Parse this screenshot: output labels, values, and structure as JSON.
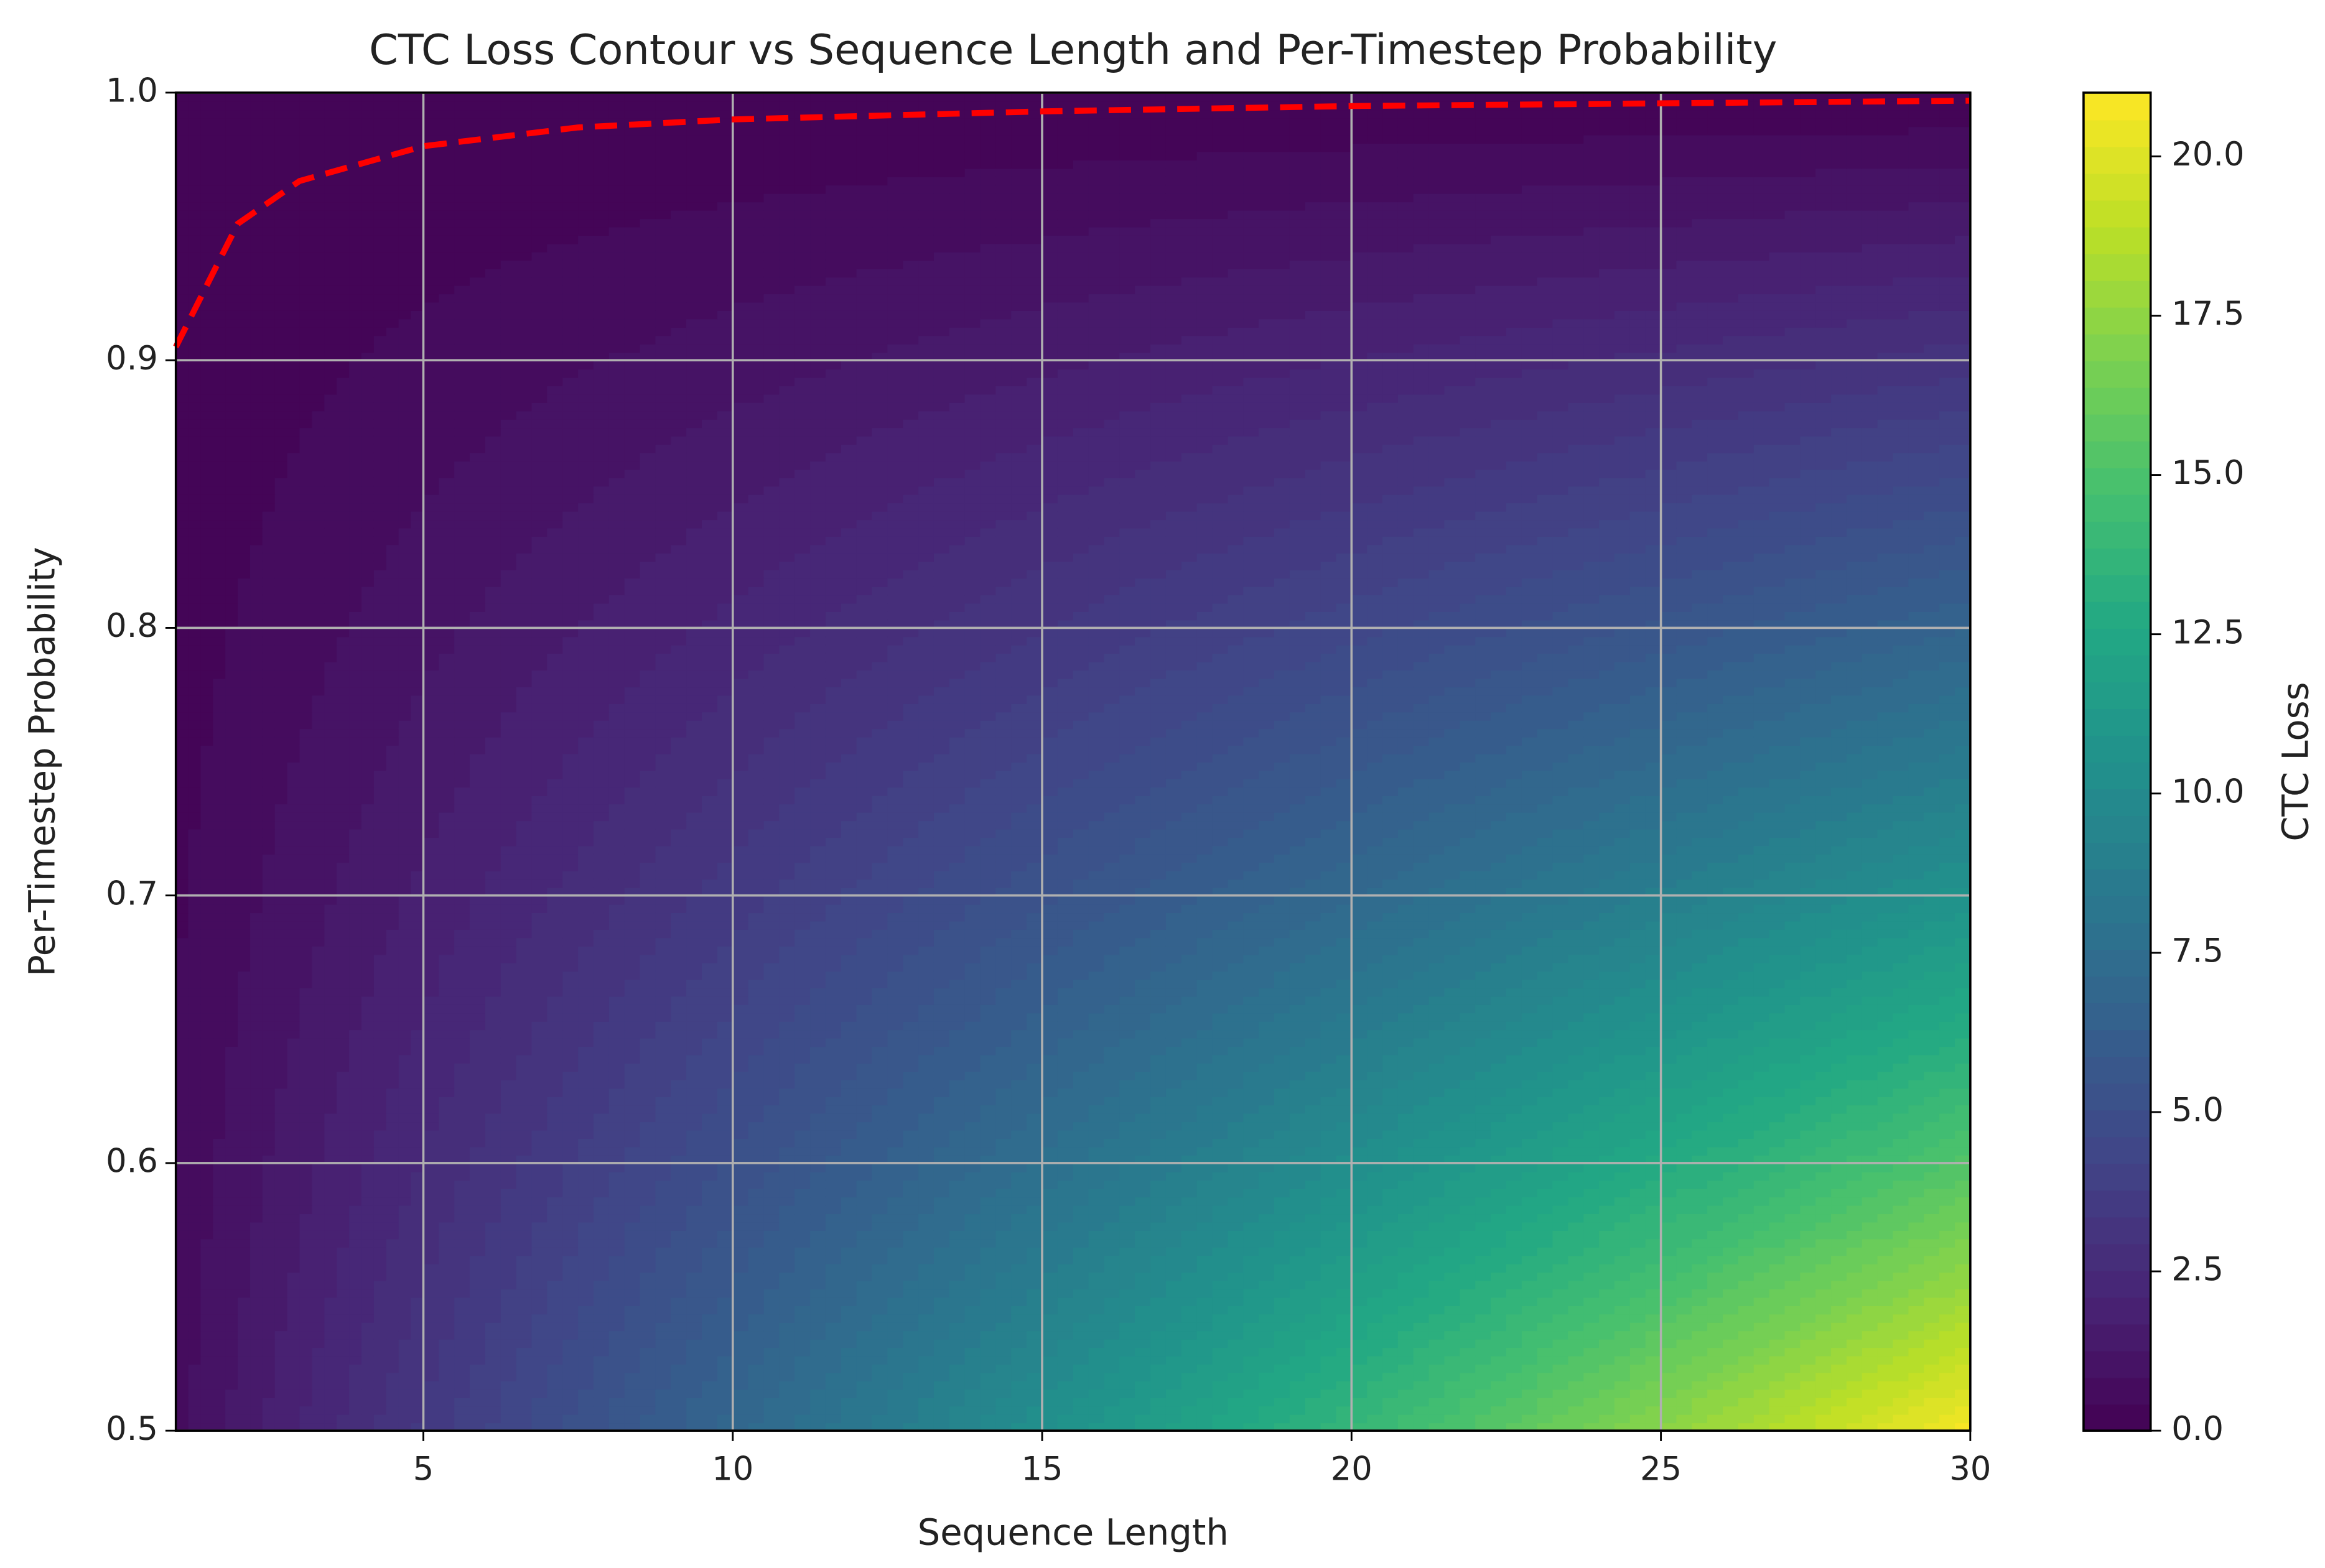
{
  "chart_data": {
    "type": "contourf",
    "title": "CTC Loss Contour vs Sequence Length and Per-Timestep Probability",
    "x_label": "Sequence Length",
    "y_label": "Per-Timestep Probability",
    "colorbar_label": "CTC Loss",
    "colormap": "viridis",
    "x": [
      1,
      5,
      10,
      15,
      20,
      25,
      30
    ],
    "y": [
      0.5,
      0.55,
      0.6,
      0.65,
      0.7,
      0.75,
      0.8,
      0.85,
      0.9,
      0.95,
      1.0
    ],
    "z": [
      [
        0.69,
        3.47,
        6.93,
        10.4,
        13.86,
        17.33,
        20.79
      ],
      [
        0.6,
        2.99,
        5.98,
        8.97,
        11.96,
        14.95,
        17.94
      ],
      [
        0.51,
        2.55,
        5.11,
        7.66,
        10.22,
        12.77,
        15.32
      ],
      [
        0.43,
        2.15,
        4.31,
        6.46,
        8.62,
        10.77,
        12.92
      ],
      [
        0.36,
        1.78,
        3.57,
        5.35,
        7.13,
        8.92,
        10.7
      ],
      [
        0.29,
        1.44,
        2.88,
        4.32,
        5.75,
        7.19,
        8.63
      ],
      [
        0.22,
        1.12,
        2.23,
        3.35,
        4.46,
        5.58,
        6.69
      ],
      [
        0.16,
        0.81,
        1.63,
        2.44,
        3.25,
        4.06,
        4.88
      ],
      [
        0.11,
        0.53,
        1.05,
        1.58,
        2.11,
        2.63,
        3.16
      ],
      [
        0.05,
        0.26,
        0.51,
        0.77,
        1.03,
        1.28,
        1.54
      ],
      [
        0,
        0,
        0,
        0,
        0,
        0,
        0
      ]
    ],
    "lines": [
      {
        "color": "#ff0000",
        "dashed": true,
        "x": [
          1,
          2,
          3,
          5,
          7.5,
          10,
          15,
          20,
          25,
          30
        ],
        "y": [
          0.905,
          0.951,
          0.967,
          0.98,
          0.987,
          0.99,
          0.993,
          0.995,
          0.996,
          0.997
        ]
      }
    ],
    "xlim": [
      1,
      30
    ],
    "xticks": [
      5,
      10,
      15,
      20,
      25,
      30
    ],
    "ylim": [
      0.5,
      1.0
    ],
    "yticks": [
      0.5,
      0.6,
      0.7,
      0.8,
      0.9,
      {
        "value": 1,
        "label": "1.0"
      }
    ],
    "zlim": [
      0,
      21
    ],
    "zticks": [
      {
        "value": 0,
        "label": "0.0"
      },
      2.5,
      {
        "value": 5,
        "label": "5.0"
      },
      7.5,
      {
        "value": 10,
        "label": "10.0"
      },
      12.5,
      {
        "value": 15,
        "label": "15.0"
      },
      17.5,
      {
        "value": 20,
        "label": "20.0"
      }
    ],
    "grid": true
  }
}
